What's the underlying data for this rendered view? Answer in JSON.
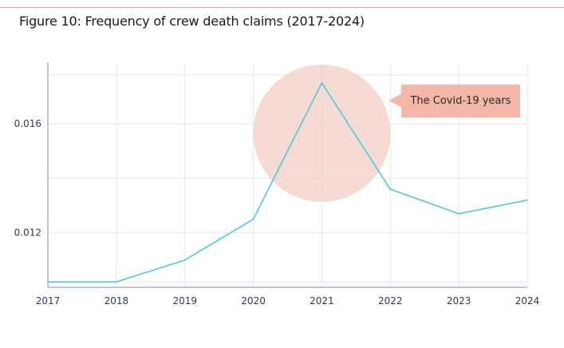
{
  "figure": {
    "title": "Figure 10: Frequency of crew death claims (2017-2024)"
  },
  "chart_data": {
    "type": "line",
    "title": "Figure 10: Frequency of crew death claims (2017-2024)",
    "xlabel": "",
    "ylabel": "",
    "categories": [
      "2017",
      "2018",
      "2019",
      "2020",
      "2021",
      "2022",
      "2023",
      "2024"
    ],
    "series": [
      {
        "values": [
          0.0102,
          0.0102,
          0.011,
          0.0125,
          0.0175,
          0.0136,
          0.0127,
          0.0132
        ]
      }
    ],
    "yticks": [
      0.012,
      0.016
    ],
    "ytick_labels": [
      "0.012",
      "0.016"
    ],
    "ylim": [
      0.01,
      0.0182
    ],
    "grid": true,
    "colors": {
      "line": "#4ec9da",
      "highlight": "#f2cfc6",
      "annotation": "#f4b6a6",
      "grid": "#e6e8ee",
      "axis": "#9aa0b8"
    },
    "annotation": {
      "text": "The Covid-19 years",
      "highlight_category": "2021"
    }
  }
}
